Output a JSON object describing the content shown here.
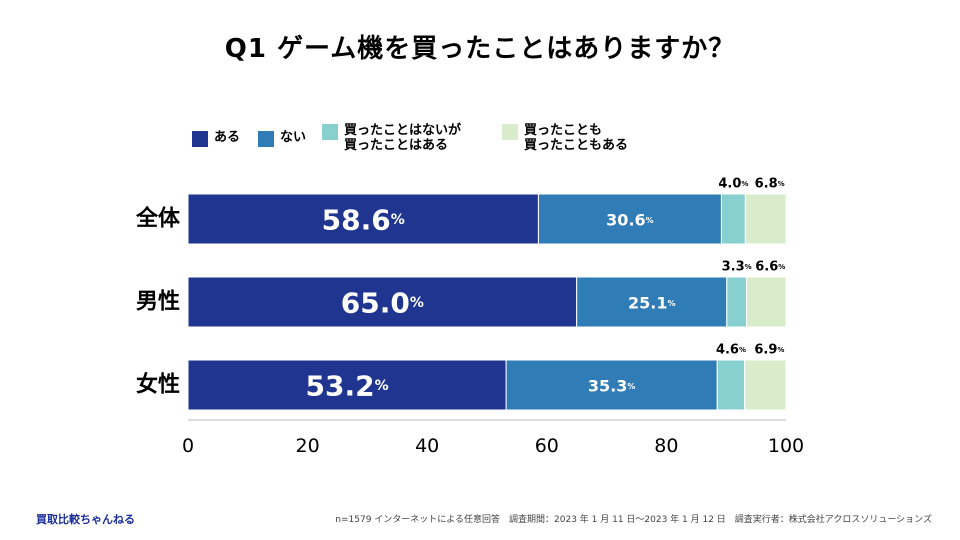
{
  "title": "Q1 ゲーム機を買ったことはありますか？",
  "legend": [
    {
      "label": "ある",
      "color": "#1f358f"
    },
    {
      "label": "ない",
      "color": "#2f7cb6"
    },
    {
      "label": "買ったことはないが\n買ったことはある",
      "color": "#88cfd0"
    },
    {
      "label": "買ったことも\n買ったこともある",
      "color": "#d8eccb"
    }
  ],
  "chart_data": {
    "type": "bar",
    "orientation": "horizontal",
    "stacked": true,
    "title": "Q1 ゲーム機を買ったことはありますか？",
    "categories": [
      "全体",
      "男性",
      "女性"
    ],
    "series": [
      {
        "name": "ある",
        "values": [
          58.6,
          65.0,
          53.2
        ]
      },
      {
        "name": "ない",
        "values": [
          30.6,
          25.1,
          35.3
        ]
      },
      {
        "name": "買ったことはないが買ったことはある",
        "values": [
          4.0,
          3.3,
          4.6
        ]
      },
      {
        "name": "買ったことも買ったこともある",
        "values": [
          6.8,
          6.6,
          6.9
        ]
      }
    ],
    "xlim": [
      0,
      100
    ],
    "xticks": [
      "0",
      "20",
      "40",
      "60",
      "80",
      "100"
    ],
    "percent_sign": "%",
    "xlabel": "",
    "ylabel": ""
  },
  "footer": {
    "brand": "買取比較ちゃんねる",
    "note": "n=1579 インターネットによる任意回答　調査期間：2023 年 1 月 11 日〜2023 年 1 月 12 日　調査実行者：株式会社アクロスソリューションズ"
  }
}
